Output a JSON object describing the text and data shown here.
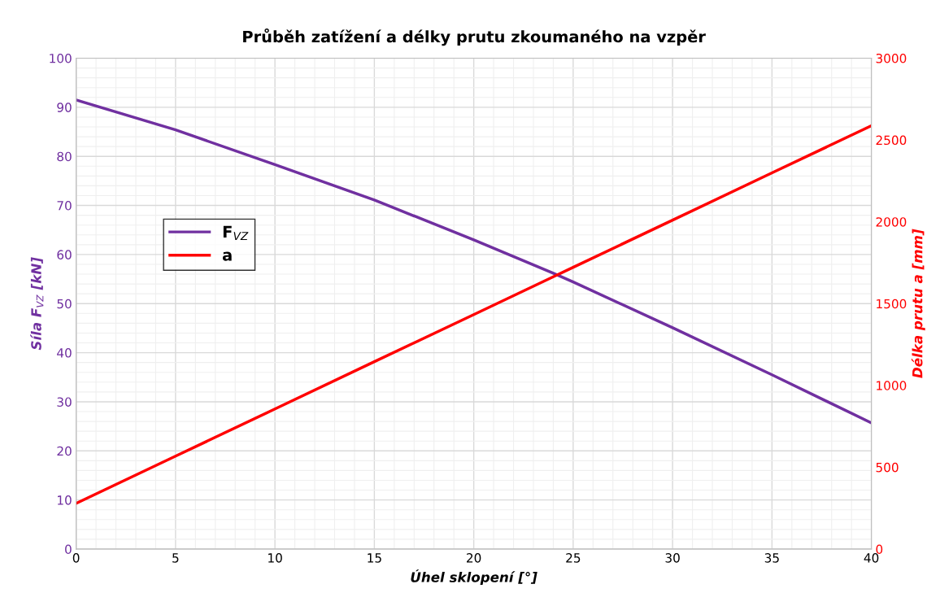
{
  "chart_data": {
    "type": "line",
    "title": "Průběh zatížení a délky prutu zkoumaného na vzpěr",
    "xlabel": "Úhel sklopení [°]",
    "ylabel": "Síla F$_{VZ}$ [kN]",
    "y2label": "Délka prutu a [mm]",
    "x": [
      0,
      5,
      10,
      15,
      20,
      24,
      25,
      30,
      35,
      40
    ],
    "series": [
      {
        "name": "F$_{VZ}$",
        "color": "#7030a0",
        "values": [
          91.5,
          85.4,
          78.3,
          71.1,
          63.0,
          56.2,
          54.4,
          45.1,
          35.5,
          25.7
        ]
      },
      {
        "name": "a",
        "color": "#ff0000",
        "axis": "y2",
        "values": [
          279,
          568,
          856,
          1145,
          1433,
          1664,
          1722,
          2010,
          2299,
          2587
        ]
      }
    ],
    "xlim": [
      0,
      40
    ],
    "xticks": [
      0,
      5,
      10,
      15,
      20,
      25,
      30,
      35,
      40
    ],
    "ylim": [
      0,
      100
    ],
    "yticks": [
      0,
      10,
      20,
      30,
      40,
      50,
      60,
      70,
      80,
      90,
      100
    ],
    "y2lim": [
      0,
      3000
    ],
    "y2ticks": [
      0,
      500,
      1000,
      1500,
      2000,
      2500,
      3000
    ],
    "grid": true,
    "legend": "center left",
    "marker": "none",
    "line_style": "solid"
  }
}
